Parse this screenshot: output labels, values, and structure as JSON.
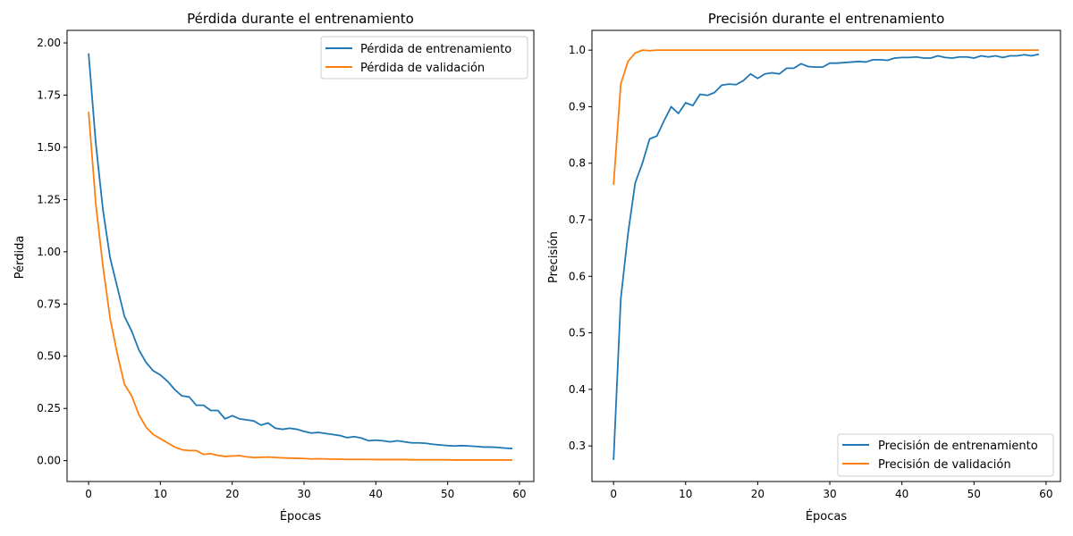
{
  "chart_data": [
    {
      "type": "line",
      "title": "Pérdida durante el entrenamiento",
      "xlabel": "Épocas",
      "ylabel": "Pérdida",
      "xlim": [
        -3,
        62
      ],
      "ylim": [
        -0.1,
        2.06
      ],
      "xticks": [
        0,
        10,
        20,
        30,
        40,
        50,
        60
      ],
      "yticks": [
        0.0,
        0.25,
        0.5,
        0.75,
        1.0,
        1.25,
        1.5,
        1.75,
        2.0
      ],
      "ytick_labels": [
        "0.00",
        "0.25",
        "0.50",
        "0.75",
        "1.00",
        "1.25",
        "1.50",
        "1.75",
        "2.00"
      ],
      "legend_position": "top-right",
      "grid": false,
      "series": [
        {
          "name": "Pérdida de entrenamiento",
          "color": "#1f77b4",
          "values": [
            1.95,
            1.52,
            1.2,
            0.97,
            0.83,
            0.69,
            0.62,
            0.53,
            0.47,
            0.43,
            0.41,
            0.38,
            0.34,
            0.31,
            0.305,
            0.265,
            0.265,
            0.24,
            0.24,
            0.2,
            0.215,
            0.2,
            0.195,
            0.19,
            0.17,
            0.18,
            0.155,
            0.15,
            0.155,
            0.15,
            0.14,
            0.132,
            0.135,
            0.13,
            0.125,
            0.12,
            0.11,
            0.115,
            0.108,
            0.095,
            0.098,
            0.095,
            0.09,
            0.095,
            0.09,
            0.085,
            0.085,
            0.083,
            0.078,
            0.075,
            0.072,
            0.07,
            0.072,
            0.07,
            0.068,
            0.065,
            0.065,
            0.063,
            0.06,
            0.058
          ]
        },
        {
          "name": "Pérdida de validación",
          "color": "#ff7f0e",
          "values": [
            1.67,
            1.23,
            0.93,
            0.68,
            0.51,
            0.365,
            0.31,
            0.22,
            0.16,
            0.125,
            0.105,
            0.085,
            0.065,
            0.052,
            0.048,
            0.048,
            0.03,
            0.033,
            0.025,
            0.02,
            0.022,
            0.024,
            0.018,
            0.015,
            0.016,
            0.017,
            0.015,
            0.013,
            0.012,
            0.011,
            0.01,
            0.008,
            0.009,
            0.008,
            0.007,
            0.007,
            0.006,
            0.006,
            0.006,
            0.006,
            0.005,
            0.005,
            0.005,
            0.005,
            0.005,
            0.004,
            0.004,
            0.004,
            0.004,
            0.004,
            0.004,
            0.003,
            0.003,
            0.003,
            0.003,
            0.003,
            0.003,
            0.003,
            0.003,
            0.003
          ]
        }
      ]
    },
    {
      "type": "line",
      "title": "Precisión durante el entrenamiento",
      "xlabel": "Épocas",
      "ylabel": "Precisión",
      "xlim": [
        -3,
        62
      ],
      "ylim": [
        0.237,
        1.035
      ],
      "xticks": [
        0,
        10,
        20,
        30,
        40,
        50,
        60
      ],
      "yticks": [
        0.3,
        0.4,
        0.5,
        0.6,
        0.7,
        0.8,
        0.9,
        1.0
      ],
      "ytick_labels": [
        "0.3",
        "0.4",
        "0.5",
        "0.6",
        "0.7",
        "0.8",
        "0.9",
        "1.0"
      ],
      "legend_position": "bottom-right",
      "grid": false,
      "series": [
        {
          "name": "Precisión de entrenamiento",
          "color": "#1f77b4",
          "values": [
            0.275,
            0.56,
            0.675,
            0.765,
            0.8,
            0.843,
            0.848,
            0.875,
            0.9,
            0.888,
            0.907,
            0.902,
            0.922,
            0.92,
            0.925,
            0.938,
            0.94,
            0.939,
            0.946,
            0.958,
            0.95,
            0.958,
            0.96,
            0.958,
            0.968,
            0.968,
            0.976,
            0.971,
            0.97,
            0.97,
            0.977,
            0.977,
            0.978,
            0.979,
            0.98,
            0.979,
            0.983,
            0.983,
            0.982,
            0.986,
            0.987,
            0.987,
            0.988,
            0.986,
            0.986,
            0.99,
            0.987,
            0.986,
            0.988,
            0.988,
            0.986,
            0.99,
            0.988,
            0.99,
            0.987,
            0.99,
            0.99,
            0.992,
            0.99,
            0.993
          ]
        },
        {
          "name": "Precisión de validación",
          "color": "#ff7f0e",
          "values": [
            0.762,
            0.94,
            0.98,
            0.995,
            1.0,
            0.999,
            1.0,
            1.0,
            1.0,
            1.0,
            1.0,
            1.0,
            1.0,
            1.0,
            1.0,
            1.0,
            1.0,
            1.0,
            1.0,
            1.0,
            1.0,
            1.0,
            1.0,
            1.0,
            1.0,
            1.0,
            1.0,
            1.0,
            1.0,
            1.0,
            1.0,
            1.0,
            1.0,
            1.0,
            1.0,
            1.0,
            1.0,
            1.0,
            1.0,
            1.0,
            1.0,
            1.0,
            1.0,
            1.0,
            1.0,
            1.0,
            1.0,
            1.0,
            1.0,
            1.0,
            1.0,
            1.0,
            1.0,
            1.0,
            1.0,
            1.0,
            1.0,
            1.0,
            1.0,
            1.0
          ]
        }
      ]
    }
  ]
}
